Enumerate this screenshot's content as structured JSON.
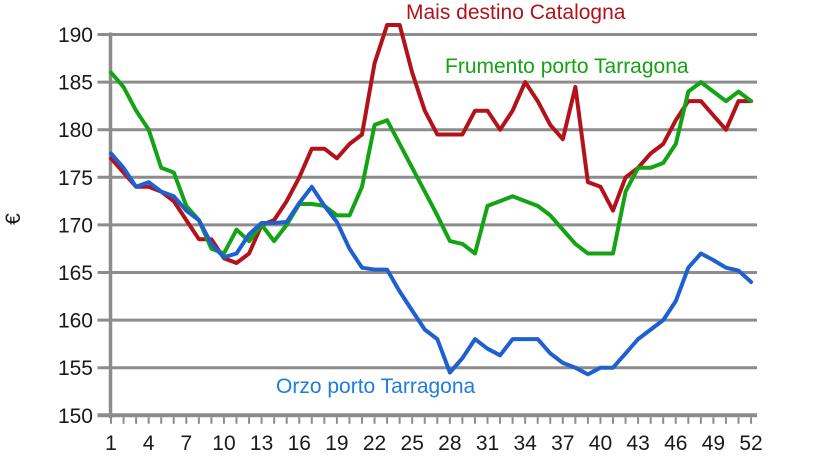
{
  "chart_data": {
    "type": "line",
    "title": "",
    "ylabel": "€",
    "x_unit": "week",
    "x_tick_labels": [
      "1",
      "4",
      "7",
      "10",
      "13",
      "16",
      "19",
      "22",
      "25",
      "28",
      "31",
      "34",
      "37",
      "40",
      "43",
      "46",
      "49",
      "52"
    ],
    "y_axis": {
      "min": 150,
      "max": 190,
      "step": 5
    },
    "grid": "horizontal",
    "legend_position": "inline-annotations",
    "colors": {
      "grid": "#8c8c8c",
      "axis": "#8c8c8c",
      "tick_label": "#1a1a1a",
      "background": "#ffffff"
    },
    "series": [
      {
        "name": "Mais destino Catalogna",
        "color": "#b4121b",
        "label_color": "#b4121b",
        "values": [
          177,
          175.5,
          174,
          174,
          173.5,
          172.5,
          170.5,
          168.5,
          168.5,
          166.5,
          166,
          167,
          170,
          170.5,
          172.5,
          175,
          178,
          178,
          177,
          178.5,
          179.5,
          187,
          191,
          191,
          186,
          182,
          179.5,
          179.5,
          179.5,
          182,
          182,
          180,
          182,
          185,
          183,
          180.5,
          179,
          184.5,
          174.5,
          174,
          171.5,
          175,
          176,
          177.5,
          178.5,
          181,
          183,
          183,
          181.5,
          180,
          183,
          183
        ]
      },
      {
        "name": "Frumento porto Tarragona",
        "color": "#14a314",
        "label_color": "#14a314",
        "values": [
          186,
          184.5,
          182,
          180,
          176,
          175.5,
          172,
          170.5,
          167.5,
          167,
          169.5,
          168.3,
          170,
          168.3,
          170,
          172.2,
          172.2,
          172,
          171,
          171,
          174,
          180.5,
          181,
          178.5,
          176,
          173.5,
          171,
          168.3,
          168,
          167,
          172,
          172.5,
          173,
          172.5,
          172,
          171,
          169.5,
          168,
          167,
          167,
          167,
          173.5,
          176,
          176,
          176.5,
          178.5,
          184,
          185,
          184,
          183,
          184,
          183
        ]
      },
      {
        "name": "Orzo porto Tarragona",
        "color": "#1e60cf",
        "label_color": "#1d7ce4",
        "values": [
          177.5,
          176,
          174,
          174.5,
          173.5,
          173,
          171.5,
          170.5,
          168,
          166.6,
          167,
          169,
          170.2,
          170.2,
          170.3,
          172.3,
          174,
          172,
          170.3,
          167.5,
          165.5,
          165.3,
          165.3,
          163,
          161,
          159,
          158,
          154.5,
          156,
          158,
          157,
          156.3,
          158,
          158,
          158,
          156.5,
          155.5,
          155,
          154.3,
          155,
          155,
          156.5,
          158,
          159,
          160,
          162,
          165.5,
          167,
          166.3,
          165.5,
          165.2,
          164
        ]
      }
    ]
  }
}
